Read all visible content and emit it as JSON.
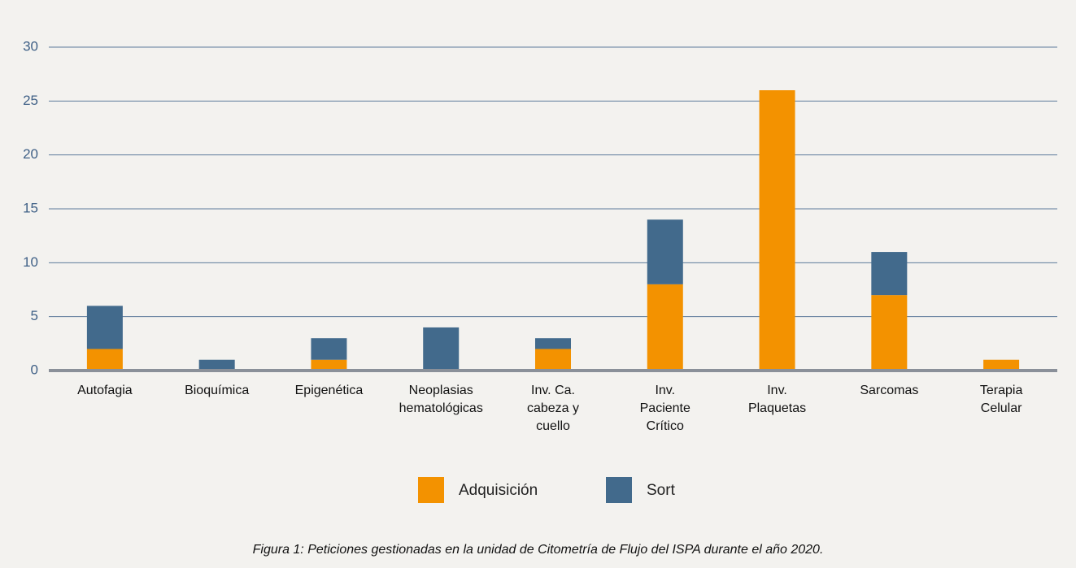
{
  "chart_data": {
    "type": "bar",
    "stacked": true,
    "caption": "Figura 1: Peticiones gestionadas en la unidad de Citometría de Flujo del ISPA durante el año 2020.",
    "categories": [
      "Autofagia",
      "Bioquímica",
      "Epigenética",
      "Neoplasias hematológicas",
      "Inv. Ca. cabeza y cuello",
      "Inv. Paciente Crítico",
      "Inv. Plaquetas",
      "Sarcomas",
      "Terapia Celular"
    ],
    "series": [
      {
        "name": "Adquisición",
        "color": "#f39200",
        "values": [
          2,
          0,
          1,
          0,
          2,
          8,
          26,
          7,
          1
        ]
      },
      {
        "name": "Sort",
        "color": "#426a8c",
        "values": [
          4,
          1,
          2,
          4,
          1,
          6,
          0,
          4,
          0
        ]
      }
    ],
    "ylim": [
      0,
      30
    ],
    "yticks": [
      0,
      5,
      10,
      15,
      20,
      25,
      30
    ],
    "grid": true,
    "legend": "bottom"
  }
}
